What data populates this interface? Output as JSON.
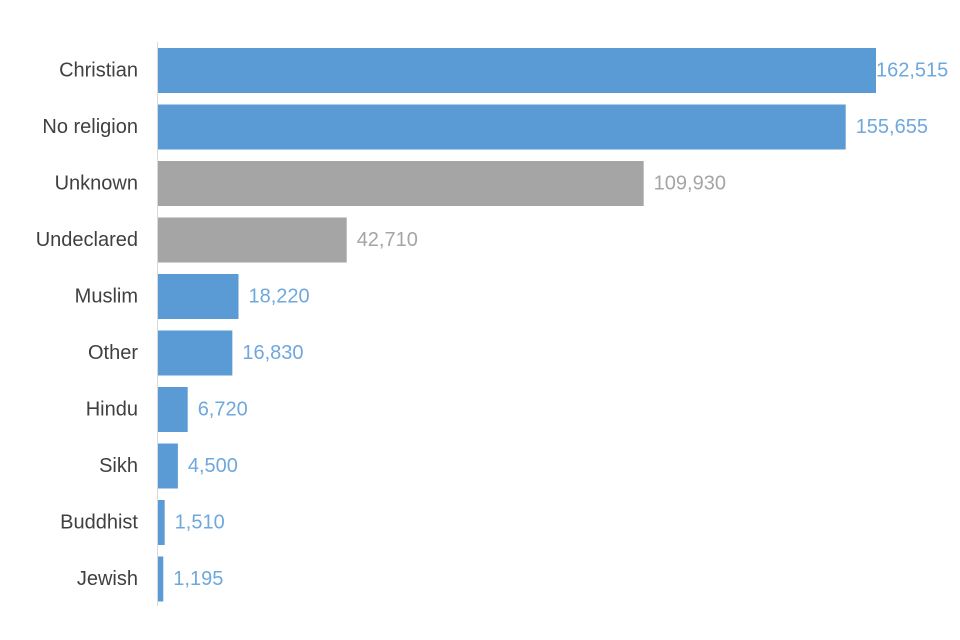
{
  "chart_data": {
    "type": "bar",
    "orientation": "horizontal",
    "categories": [
      "Christian",
      "No religion",
      "Unknown",
      "Undeclared",
      "Muslim",
      "Other",
      "Hindu",
      "Sikh",
      "Buddhist",
      "Jewish"
    ],
    "values": [
      162515,
      155655,
      109930,
      42710,
      18220,
      16830,
      6720,
      4500,
      1510,
      1195
    ],
    "value_labels": [
      "162,515",
      "155,655",
      "109,930",
      "42,710",
      "18,220",
      "16,830",
      "6,720",
      "4,500",
      "1,510",
      "1,195"
    ],
    "bar_status": [
      "declared",
      "declared",
      "not-known",
      "not-known",
      "declared",
      "declared",
      "declared",
      "declared",
      "declared",
      "declared"
    ],
    "colors": {
      "declared_bar": "#5B9BD5",
      "declared_label": "#6FA8DC",
      "not_known_bar": "#A5A5A5",
      "not_known_label": "#A5A5A5",
      "axis_line": "#D9D9D9",
      "category_text": "#404040"
    },
    "title": "",
    "xlabel": "",
    "ylabel": "",
    "xlim": [
      0,
      162515
    ],
    "grid": false,
    "legend": "none"
  }
}
